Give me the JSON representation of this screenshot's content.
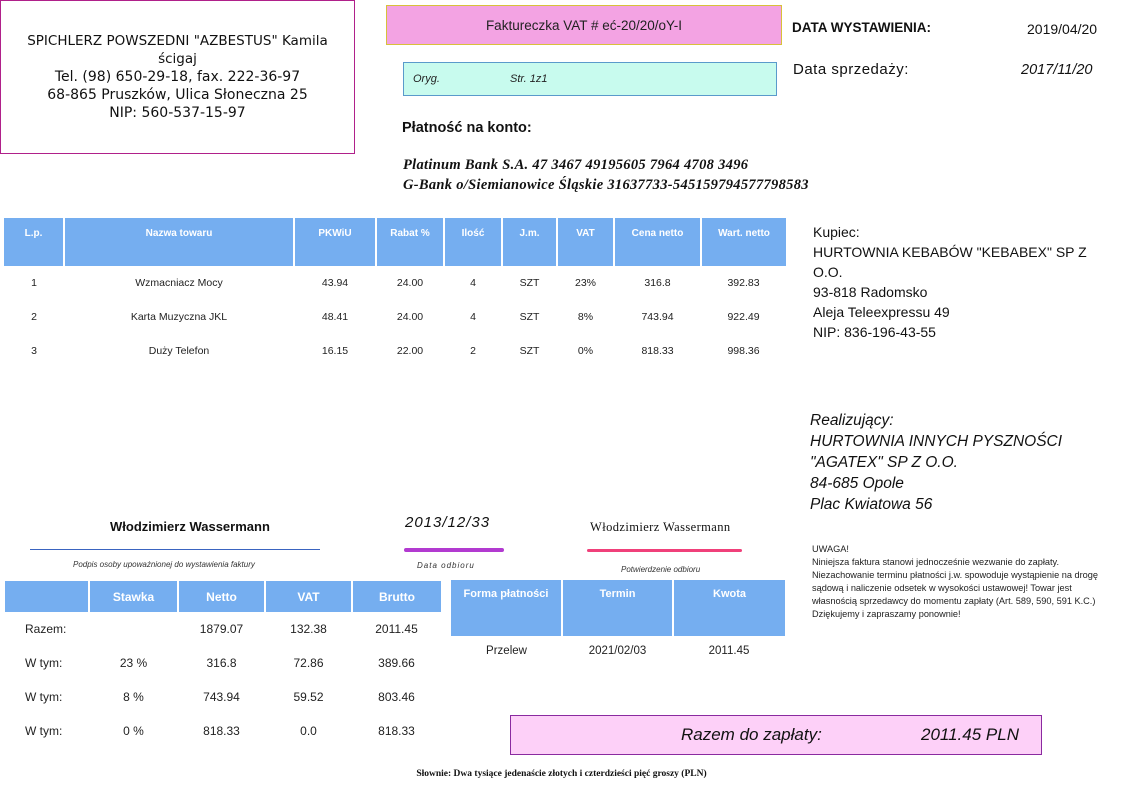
{
  "seller": {
    "name": "SPICHLERZ POWSZEDNI \"AZBESTUS\" Kamila ścigaj",
    "phone": "Tel. (98) 650-29-18, fax. 222-36-97",
    "address": "68-865 Pruszków, Ulica Słoneczna 25",
    "nip": "NIP: 560-537-15-97"
  },
  "invoice": {
    "title": "Faktureczka VAT # eć-20/20/oY-I",
    "copy": "Oryg.",
    "page": "Str. 1z1"
  },
  "dates": {
    "issue_label": "DATA WYSTAWIENIA:",
    "issue_value": "2019/04/20",
    "sale_label": "Data sprzedaży:",
    "sale_value": "2017/11/20"
  },
  "payment": {
    "label": "Płatność na konto:",
    "bank1": "Platinum Bank S.A. 47 3467 49195605 7964 4708 3496",
    "bank2": "G-Bank o/Siemianowice Śląskie 31637733-545159794577798583"
  },
  "items": {
    "headers": [
      "L.p.",
      "Nazwa towaru",
      "PKWiU",
      "Rabat %",
      "Ilość",
      "J.m.",
      "VAT",
      "Cena netto",
      "Wart. netto"
    ],
    "rows": [
      [
        "1",
        "Wzmacniacz Mocy",
        "43.94",
        "24.00",
        "4",
        "SZT",
        "23%",
        "316.8",
        "392.83"
      ],
      [
        "2",
        "Karta Muzyczna JKL",
        "48.41",
        "24.00",
        "4",
        "SZT",
        "8%",
        "743.94",
        "922.49"
      ],
      [
        "3",
        "Duży Telefon",
        "16.15",
        "22.00",
        "2",
        "SZT",
        "0%",
        "818.33",
        "998.36"
      ]
    ]
  },
  "buyer": {
    "label": "Kupiec:",
    "name": "HURTOWNIA KEBABÓW \"KEBABEX\" SP Z O.O.",
    "city": "93-818 Radomsko",
    "street": "Aleja Teleexpressu 49",
    "nip": "NIP: 836-196-43-55"
  },
  "realizer": {
    "label": "Realizujący:",
    "name": "HURTOWNIA INNYCH PYSZNOŚCI \"AGATEX\" SP Z O.O.",
    "city": "84-685 Opole",
    "street": "Plac Kwiatowa 56"
  },
  "signatures": {
    "issuer_name": "Włodzimierz Wassermann",
    "issuer_caption": "Podpis osoby upoważnionej do wystawienia faktury",
    "receipt_date": "2013/12/33",
    "receipt_date_caption": "Data odbioru",
    "receiver_name": "Włodzimierz Wassermann",
    "receiver_caption": "Potwierdzenie odbioru"
  },
  "notice": {
    "title": "UWAGA!",
    "body": "Niniejsza faktura stanowi jednocześnie wezwanie do zapłaty. Niezachowanie terminu płatności j.w. spowoduje wystąpienie na drogę sądową i naliczenie odsetek w wysokości ustawowej! Towar jest własnością sprzedawcy do momentu zapłaty (Art. 589, 590, 591 K.C.)",
    "thanks": "Dziękujemy i zapraszamy ponownie!"
  },
  "vat_summary": {
    "headers": [
      "",
      "Stawka",
      "Netto",
      "VAT",
      "Brutto"
    ],
    "rows": [
      [
        "Razem:",
        "",
        "1879.07",
        "132.38",
        "2011.45"
      ],
      [
        "W tym:",
        "23 %",
        "316.8",
        "72.86",
        "389.66"
      ],
      [
        "W tym:",
        "8 %",
        "743.94",
        "59.52",
        "803.46"
      ],
      [
        "W tym:",
        "0 %",
        "818.33",
        "0.0",
        "818.33"
      ]
    ]
  },
  "payment_form": {
    "headers": [
      "Forma płatności",
      "Termin",
      "Kwota"
    ],
    "row": [
      "Przelew",
      "2021/02/03",
      "2011.45"
    ]
  },
  "total": {
    "label": "Razem do zapłaty:",
    "value": "2011.45 PLN"
  },
  "words": "Słownie: Dwa tysiące jedenaście złotych i czterdzieści pięć groszy (PLN)"
}
